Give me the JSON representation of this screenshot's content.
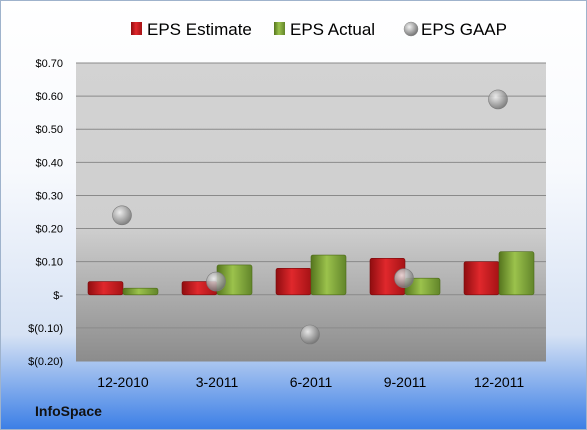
{
  "company": "InfoSpace",
  "colors": {
    "estimate": "#c8171b",
    "actual": "#7ea237",
    "gaap": "#a9a9a9"
  },
  "chart_data": {
    "type": "bar",
    "title": "",
    "xlabel": "",
    "ylabel": "",
    "categories": [
      "12-2010",
      "3-2011",
      "6-2011",
      "9-2011",
      "12-2011"
    ],
    "series": [
      {
        "name": "EPS Estimate",
        "kind": "bar",
        "values": [
          0.04,
          0.04,
          0.08,
          0.11,
          0.1
        ]
      },
      {
        "name": "EPS Actual",
        "kind": "bar",
        "values": [
          0.02,
          0.09,
          0.12,
          0.05,
          0.13
        ]
      },
      {
        "name": "EPS GAAP",
        "kind": "scatter",
        "values": [
          0.24,
          0.04,
          -0.12,
          0.05,
          0.59
        ]
      }
    ],
    "ylim": [
      -0.2,
      0.7
    ],
    "yticks": [
      0.7,
      0.6,
      0.5,
      0.4,
      0.3,
      0.2,
      0.1,
      0,
      -0.1,
      -0.2
    ],
    "ytick_labels": [
      "$0.70",
      "$0.60",
      "$0.50",
      "$0.40",
      "$0.30",
      "$0.20",
      "$0.10",
      "$-",
      "$(0.10)",
      "$(0.20)"
    ],
    "legend_position": "top",
    "grid": true
  }
}
